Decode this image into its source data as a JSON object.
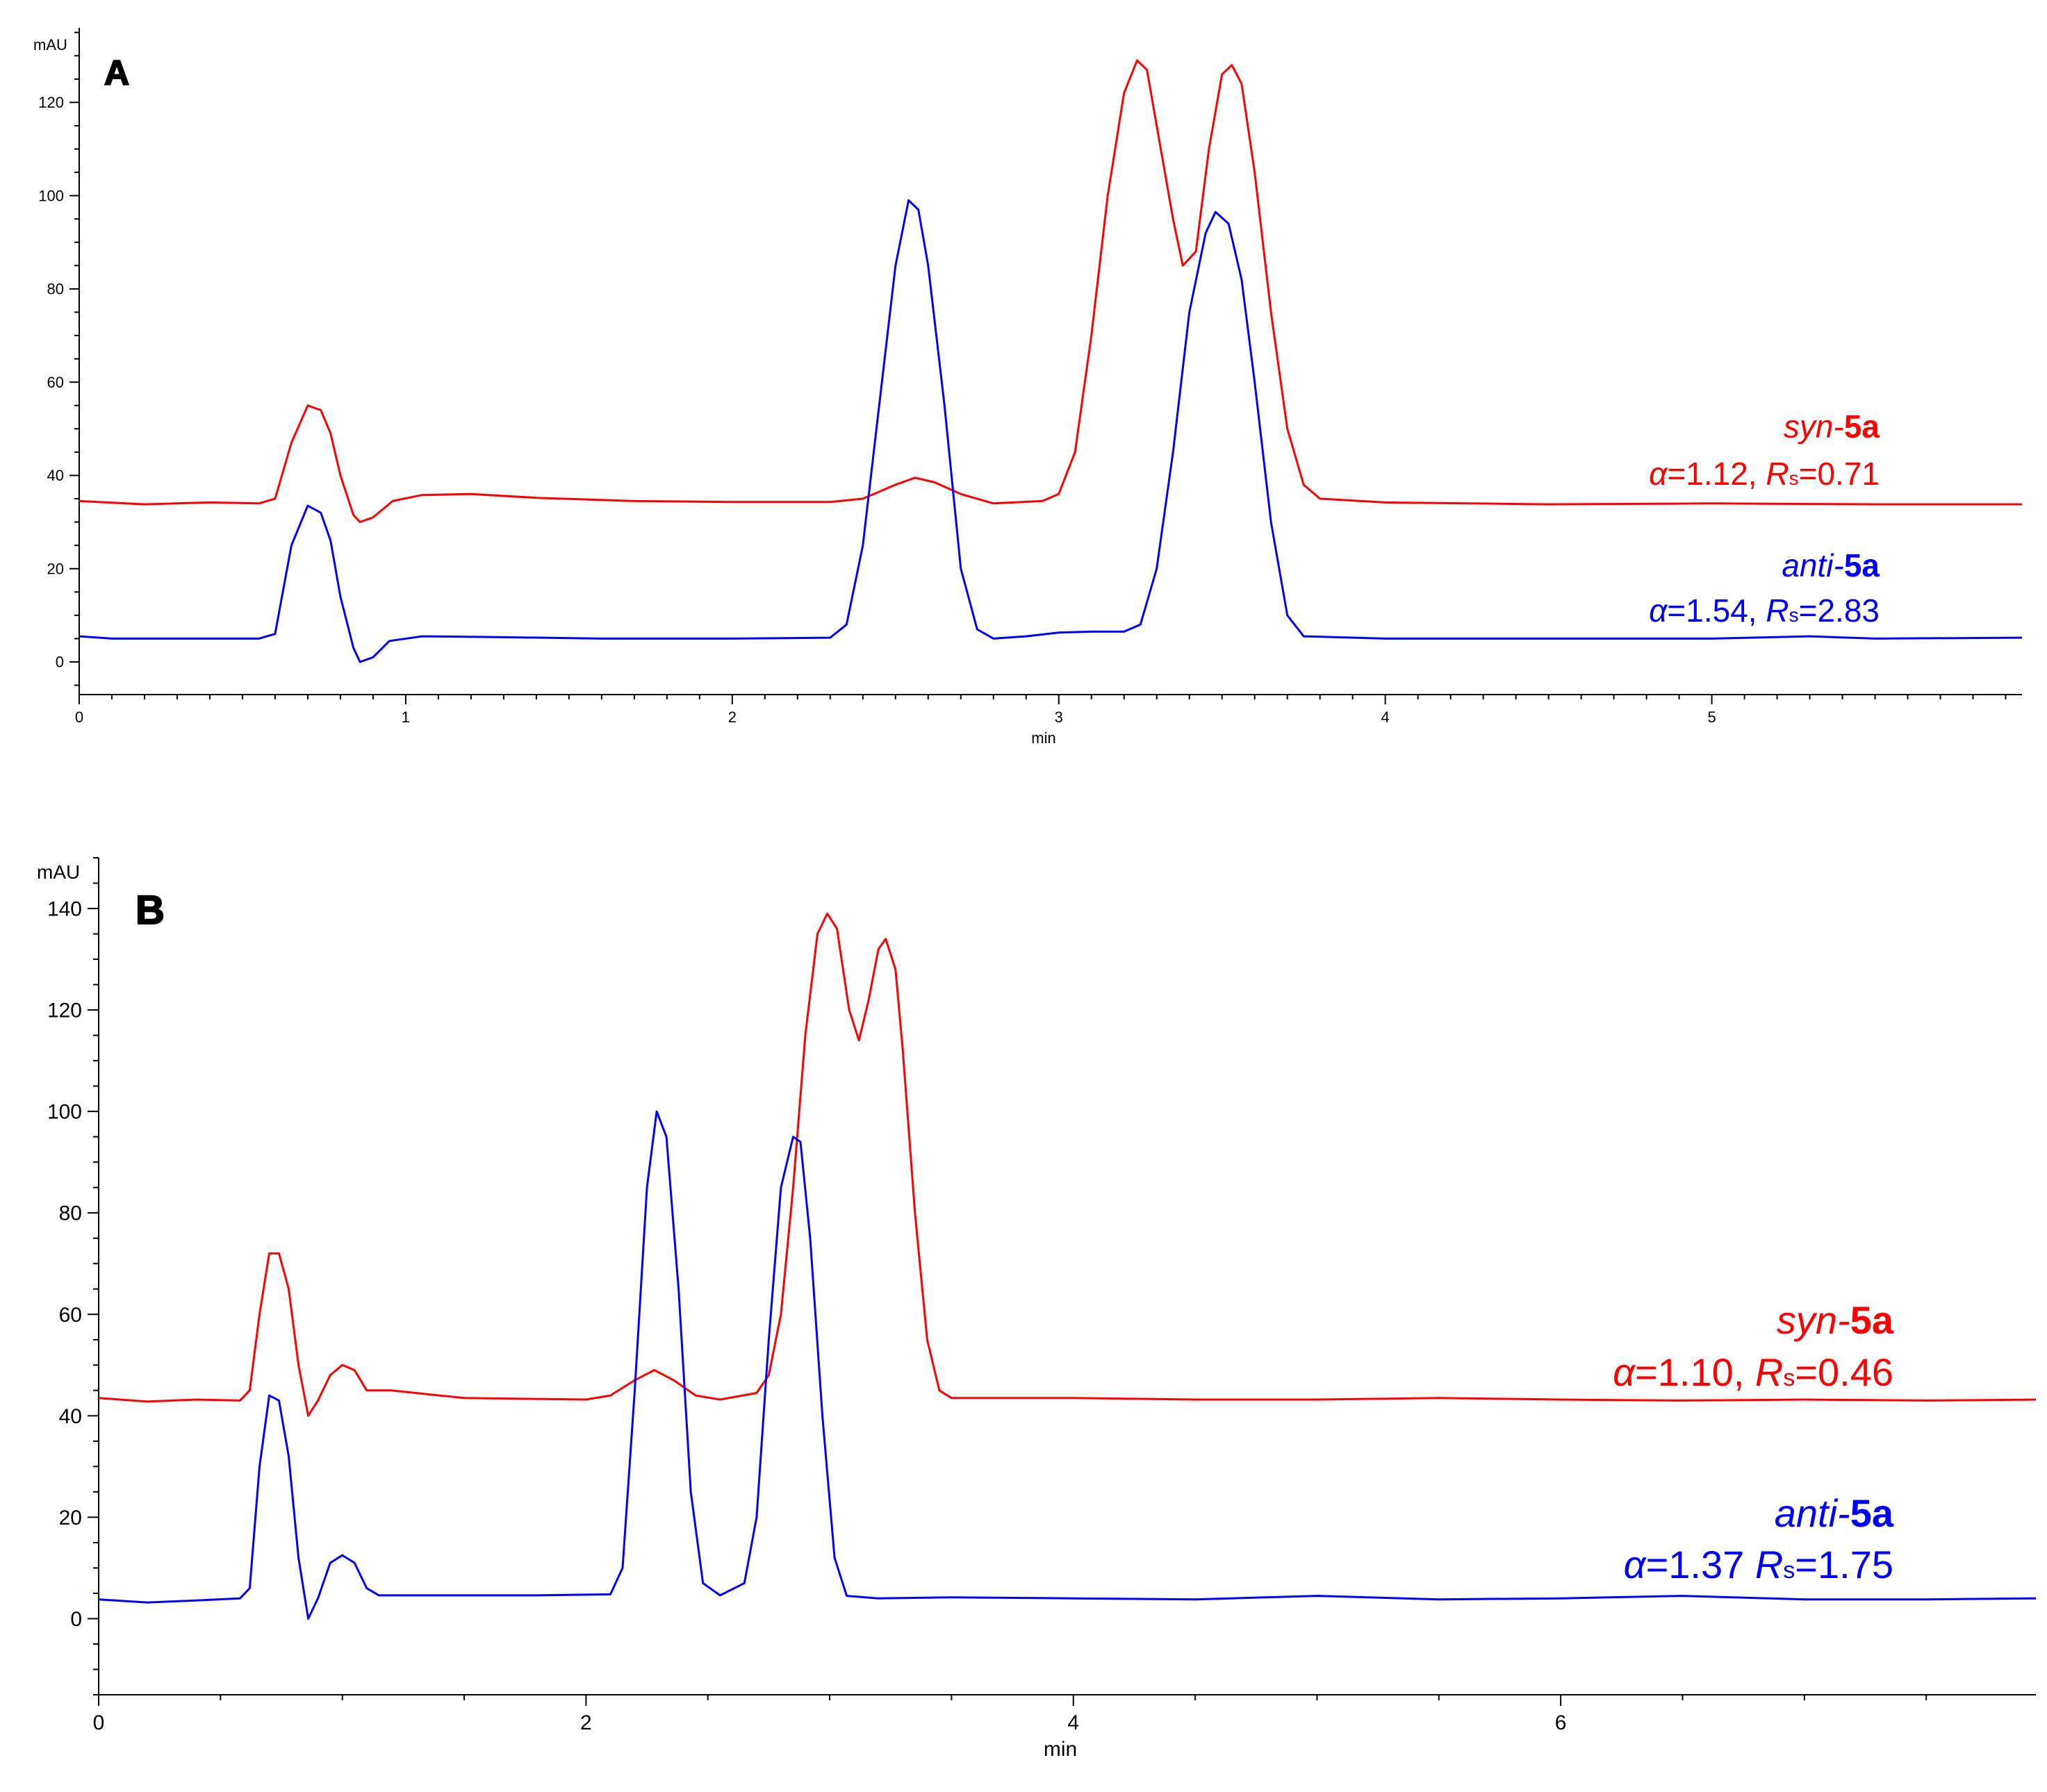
{
  "chart_data": [
    {
      "panel": "A",
      "type": "line",
      "ylabel": "mAU",
      "xlabel": "min",
      "xlim": [
        0,
        5.95
      ],
      "ylim": [
        -7,
        136
      ],
      "x_ticks": [
        0,
        1,
        2,
        3,
        4,
        5
      ],
      "y_ticks": [
        0,
        20,
        40,
        60,
        80,
        100,
        120
      ],
      "series": [
        {
          "color": "#ff0000",
          "points": [
            [
              0,
              34.5
            ],
            [
              0.2,
              33.8
            ],
            [
              0.4,
              34.2
            ],
            [
              0.55,
              34.0
            ],
            [
              0.6,
              35.0
            ],
            [
              0.65,
              47
            ],
            [
              0.7,
              55
            ],
            [
              0.74,
              54
            ],
            [
              0.77,
              49
            ],
            [
              0.8,
              40
            ],
            [
              0.84,
              31.5
            ],
            [
              0.86,
              30
            ],
            [
              0.9,
              31
            ],
            [
              0.96,
              34.5
            ],
            [
              1.05,
              35.8
            ],
            [
              1.2,
              36
            ],
            [
              1.4,
              35.2
            ],
            [
              1.7,
              34.5
            ],
            [
              2.0,
              34.3
            ],
            [
              2.3,
              34.3
            ],
            [
              2.4,
              35
            ],
            [
              2.5,
              38
            ],
            [
              2.56,
              39.5
            ],
            [
              2.62,
              38.5
            ],
            [
              2.7,
              36
            ],
            [
              2.8,
              34
            ],
            [
              2.95,
              34.5
            ],
            [
              3.0,
              36
            ],
            [
              3.05,
              45
            ],
            [
              3.1,
              70
            ],
            [
              3.15,
              100
            ],
            [
              3.2,
              122
            ],
            [
              3.24,
              129
            ],
            [
              3.27,
              127
            ],
            [
              3.3,
              115
            ],
            [
              3.35,
              95
            ],
            [
              3.38,
              85
            ],
            [
              3.42,
              88
            ],
            [
              3.46,
              110
            ],
            [
              3.5,
              126
            ],
            [
              3.53,
              128
            ],
            [
              3.56,
              124
            ],
            [
              3.6,
              105
            ],
            [
              3.65,
              75
            ],
            [
              3.7,
              50
            ],
            [
              3.75,
              38
            ],
            [
              3.8,
              35
            ],
            [
              4.0,
              34.2
            ],
            [
              4.5,
              33.8
            ],
            [
              5.0,
              34.0
            ],
            [
              5.5,
              33.8
            ],
            [
              5.95,
              33.8
            ]
          ]
        },
        {
          "color": "#0000ff",
          "points": [
            [
              0,
              5.5
            ],
            [
              0.1,
              5.0
            ],
            [
              0.3,
              5.0
            ],
            [
              0.55,
              5.0
            ],
            [
              0.6,
              6.0
            ],
            [
              0.65,
              25
            ],
            [
              0.7,
              33.5
            ],
            [
              0.74,
              32
            ],
            [
              0.77,
              26
            ],
            [
              0.8,
              14
            ],
            [
              0.84,
              3
            ],
            [
              0.86,
              0
            ],
            [
              0.9,
              1
            ],
            [
              0.95,
              4.5
            ],
            [
              1.05,
              5.5
            ],
            [
              1.3,
              5.3
            ],
            [
              1.6,
              5.0
            ],
            [
              2.0,
              5.0
            ],
            [
              2.3,
              5.2
            ],
            [
              2.35,
              8
            ],
            [
              2.4,
              25
            ],
            [
              2.45,
              55
            ],
            [
              2.5,
              85
            ],
            [
              2.54,
              99
            ],
            [
              2.57,
              97
            ],
            [
              2.6,
              85
            ],
            [
              2.65,
              55
            ],
            [
              2.7,
              20
            ],
            [
              2.75,
              7
            ],
            [
              2.8,
              5.0
            ],
            [
              2.9,
              5.5
            ],
            [
              3.0,
              6.3
            ],
            [
              3.1,
              6.5
            ],
            [
              3.2,
              6.5
            ],
            [
              3.25,
              8
            ],
            [
              3.3,
              20
            ],
            [
              3.35,
              45
            ],
            [
              3.4,
              75
            ],
            [
              3.45,
              92
            ],
            [
              3.48,
              96.5
            ],
            [
              3.52,
              94
            ],
            [
              3.56,
              82
            ],
            [
              3.6,
              60
            ],
            [
              3.65,
              30
            ],
            [
              3.7,
              10
            ],
            [
              3.75,
              5.5
            ],
            [
              4.0,
              5.0
            ],
            [
              4.5,
              5.0
            ],
            [
              5.0,
              5.0
            ],
            [
              5.3,
              5.5
            ],
            [
              5.5,
              5.0
            ],
            [
              5.95,
              5.2
            ]
          ]
        }
      ],
      "annotations": [
        {
          "color": "#ff0000",
          "lines": [
            {
              "it": "syn-",
              "b": "5a"
            },
            {
              "alpha": "α",
              "t1": "=1.12, ",
              "R": "R",
              "s": "s",
              "t2": "=0.71"
            }
          ]
        },
        {
          "color": "#0000ff",
          "lines": [
            {
              "it": "anti-",
              "b": "5a"
            },
            {
              "alpha": "α",
              "t1": "=1.54, ",
              "R": "R",
              "s": "s",
              "t2": "=2.83"
            }
          ]
        }
      ]
    },
    {
      "panel": "B",
      "type": "line",
      "ylabel": "mAU",
      "xlabel": "min",
      "xlim": [
        0,
        7.95
      ],
      "ylim": [
        -15,
        150
      ],
      "x_ticks": [
        0,
        2,
        4,
        6
      ],
      "y_ticks": [
        0,
        20,
        40,
        60,
        80,
        100,
        120,
        140
      ],
      "series": [
        {
          "color": "#ff0000",
          "points": [
            [
              0,
              43.5
            ],
            [
              0.2,
              42.8
            ],
            [
              0.4,
              43.2
            ],
            [
              0.58,
              43
            ],
            [
              0.62,
              45
            ],
            [
              0.66,
              60
            ],
            [
              0.7,
              72
            ],
            [
              0.74,
              72
            ],
            [
              0.78,
              65
            ],
            [
              0.82,
              50
            ],
            [
              0.86,
              40
            ],
            [
              0.9,
              43
            ],
            [
              0.95,
              48
            ],
            [
              1.0,
              50
            ],
            [
              1.05,
              49
            ],
            [
              1.1,
              45
            ],
            [
              1.2,
              45
            ],
            [
              1.5,
              43.5
            ],
            [
              2.0,
              43.2
            ],
            [
              2.1,
              44
            ],
            [
              2.2,
              47
            ],
            [
              2.28,
              49
            ],
            [
              2.36,
              47
            ],
            [
              2.45,
              44
            ],
            [
              2.55,
              43.2
            ],
            [
              2.7,
              44.5
            ],
            [
              2.75,
              48
            ],
            [
              2.8,
              60
            ],
            [
              2.85,
              85
            ],
            [
              2.9,
              115
            ],
            [
              2.95,
              135
            ],
            [
              2.99,
              139
            ],
            [
              3.03,
              136
            ],
            [
              3.08,
              120
            ],
            [
              3.12,
              114
            ],
            [
              3.16,
              122
            ],
            [
              3.2,
              132
            ],
            [
              3.23,
              134
            ],
            [
              3.27,
              128
            ],
            [
              3.3,
              112
            ],
            [
              3.35,
              80
            ],
            [
              3.4,
              55
            ],
            [
              3.45,
              45
            ],
            [
              3.5,
              43.5
            ],
            [
              4.0,
              43.5
            ],
            [
              4.5,
              43.2
            ],
            [
              5.0,
              43.2
            ],
            [
              5.5,
              43.5
            ],
            [
              6.0,
              43.2
            ],
            [
              6.5,
              43.0
            ],
            [
              7.0,
              43.2
            ],
            [
              7.5,
              43.0
            ],
            [
              7.95,
              43.2
            ]
          ]
        },
        {
          "color": "#0000ff",
          "points": [
            [
              0,
              3.8
            ],
            [
              0.2,
              3.2
            ],
            [
              0.4,
              3.6
            ],
            [
              0.58,
              4
            ],
            [
              0.62,
              6
            ],
            [
              0.66,
              30
            ],
            [
              0.7,
              44
            ],
            [
              0.74,
              43
            ],
            [
              0.78,
              32
            ],
            [
              0.82,
              12
            ],
            [
              0.86,
              0
            ],
            [
              0.9,
              4
            ],
            [
              0.95,
              11
            ],
            [
              1.0,
              12.5
            ],
            [
              1.05,
              11
            ],
            [
              1.1,
              6
            ],
            [
              1.15,
              4.6
            ],
            [
              1.4,
              4.6
            ],
            [
              1.8,
              4.6
            ],
            [
              2.1,
              4.8
            ],
            [
              2.15,
              10
            ],
            [
              2.2,
              45
            ],
            [
              2.25,
              85
            ],
            [
              2.29,
              100
            ],
            [
              2.33,
              95
            ],
            [
              2.38,
              65
            ],
            [
              2.43,
              25
            ],
            [
              2.48,
              7
            ],
            [
              2.55,
              4.6
            ],
            [
              2.65,
              7
            ],
            [
              2.7,
              20
            ],
            [
              2.75,
              55
            ],
            [
              2.8,
              85
            ],
            [
              2.85,
              95
            ],
            [
              2.88,
              94
            ],
            [
              2.92,
              75
            ],
            [
              2.97,
              40
            ],
            [
              3.02,
              12
            ],
            [
              3.07,
              4.5
            ],
            [
              3.2,
              4.0
            ],
            [
              3.5,
              4.2
            ],
            [
              4.0,
              4.0
            ],
            [
              4.5,
              3.8
            ],
            [
              5.0,
              4.5
            ],
            [
              5.5,
              3.8
            ],
            [
              6.0,
              4.0
            ],
            [
              6.5,
              4.5
            ],
            [
              7.0,
              3.8
            ],
            [
              7.5,
              3.8
            ],
            [
              7.95,
              4.0
            ]
          ]
        }
      ],
      "annotations": [
        {
          "color": "#ff0000",
          "lines": [
            {
              "it": "syn-",
              "b": "5a"
            },
            {
              "alpha": "α",
              "t1": "=1.10, ",
              "R": "R",
              "s": "s",
              "t2": "=0.46"
            }
          ]
        },
        {
          "color": "#0000ff",
          "lines": [
            {
              "it": "anti-",
              "b": "5a"
            },
            {
              "alpha": "α",
              "t1": "=1.37  ",
              "R": "R",
              "s": "s",
              "t2": "=1.75"
            }
          ]
        }
      ]
    }
  ]
}
